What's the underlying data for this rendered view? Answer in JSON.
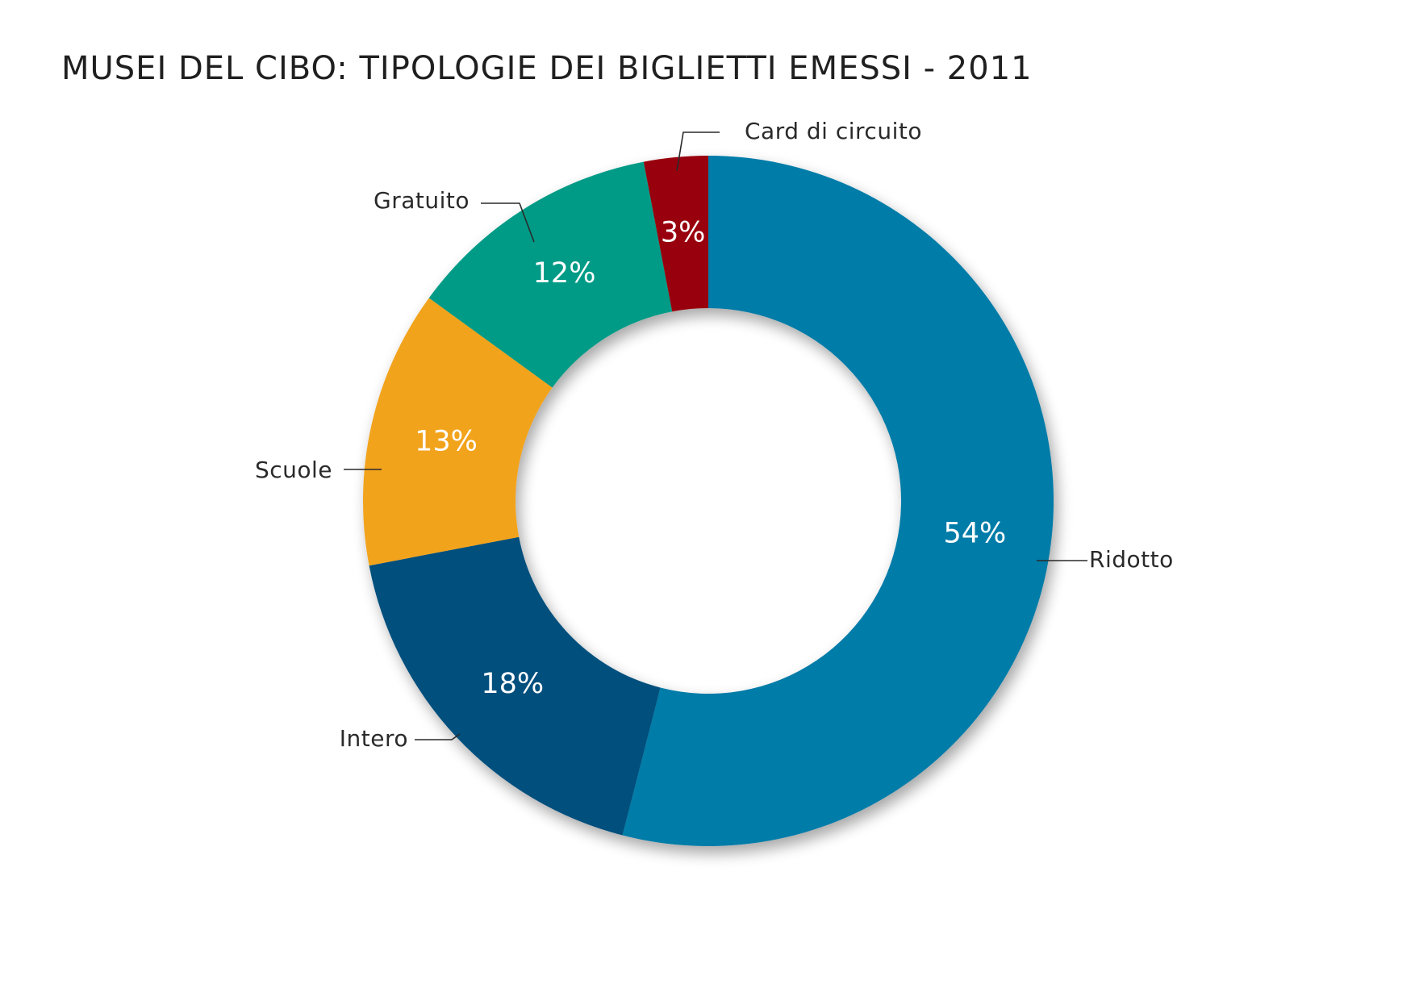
{
  "chart_data": {
    "type": "pie",
    "variant": "donut",
    "title": "MUSEI DEL CIBO: TIPOLOGIE DEI BIGLIETTI EMESSI - 2011",
    "categories": [
      "Ridotto",
      "Intero",
      "Scuole",
      "Gratuito",
      "Card di circuito"
    ],
    "values": [
      54,
      18,
      13,
      12,
      3
    ],
    "labels": [
      "54%",
      "18%",
      "13%",
      "12%",
      "3%"
    ],
    "unit": "%",
    "colors": [
      "#037ba8",
      "#06507d",
      "#f2a31e",
      "#039b86",
      "#990008"
    ],
    "start": "top",
    "direction": "clockwise",
    "legend": "none (direct labels with leader lines)"
  }
}
